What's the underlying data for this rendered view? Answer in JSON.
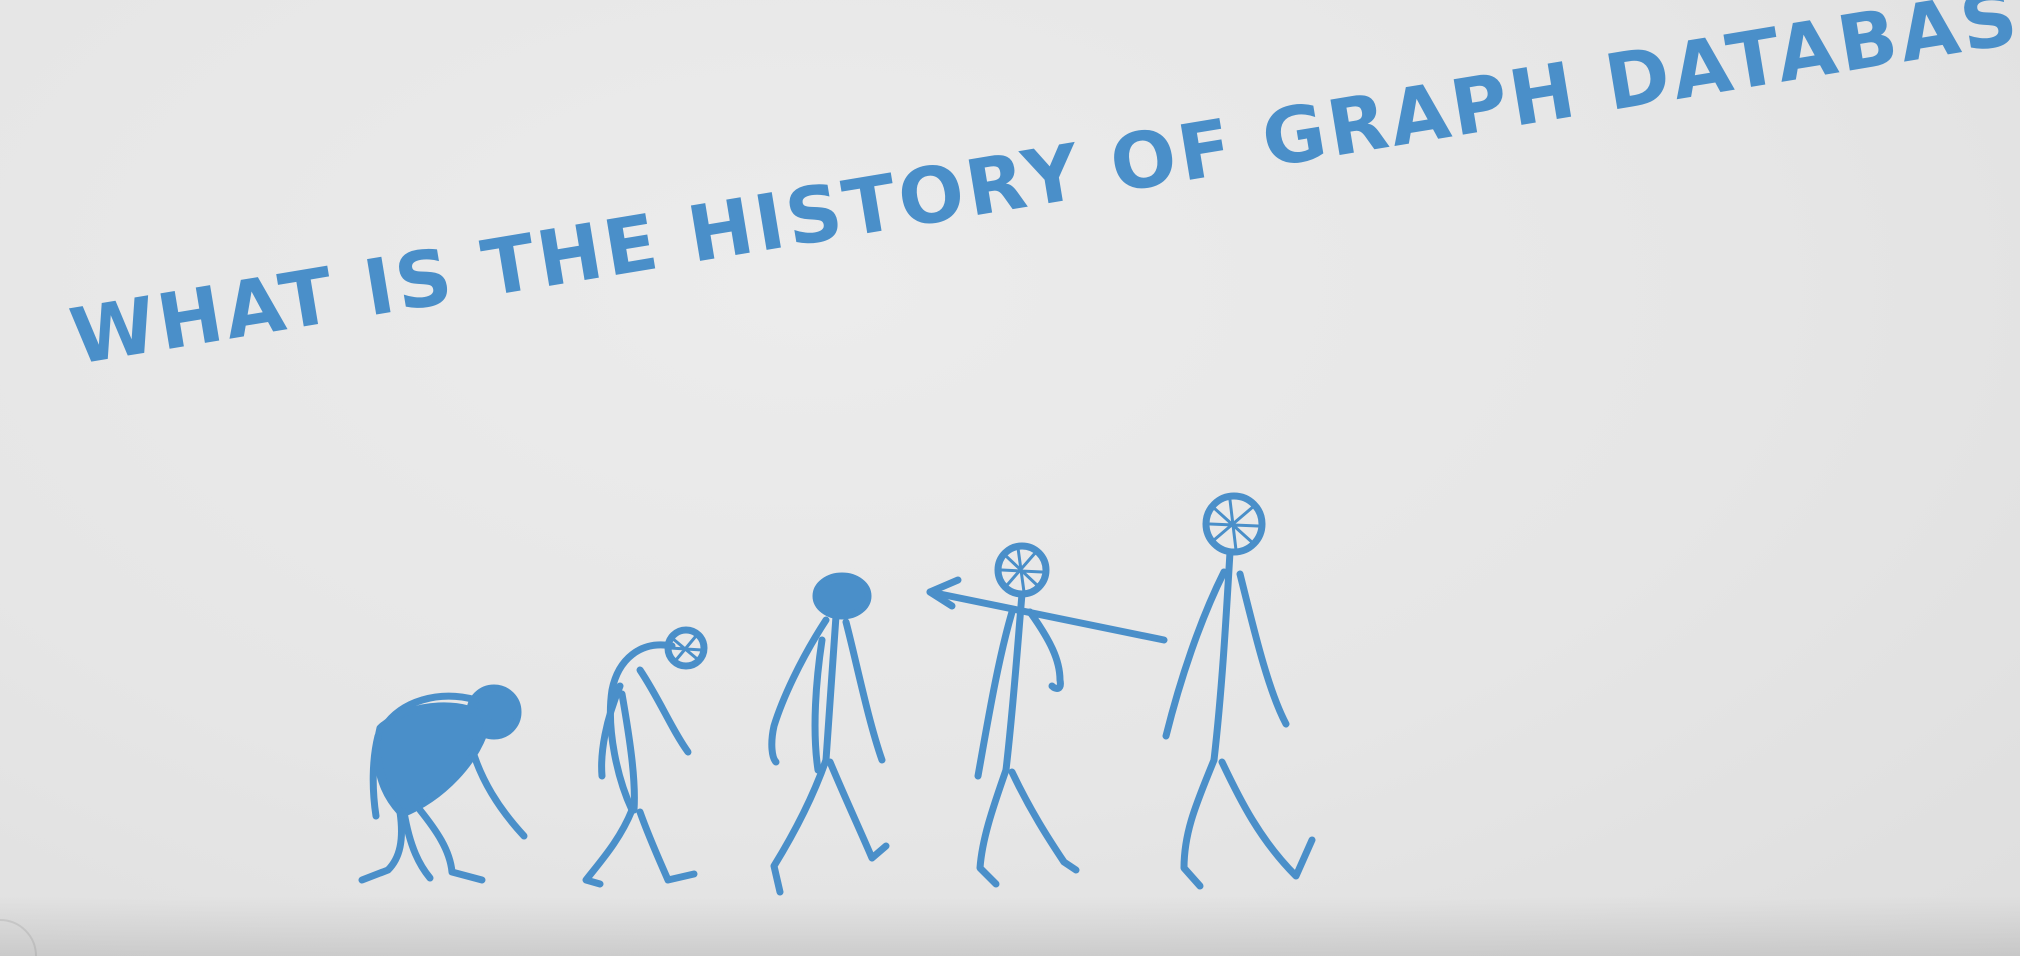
{
  "headline": "WHAT IS THE HISTORY OF GRAPH DATABASES ..?",
  "colors": {
    "ink": "#4a8fc9",
    "paper": "#e9e9e9"
  },
  "illustration": {
    "subject": "evolution-of-man",
    "figures": [
      "ape",
      "hunched-hominid",
      "early-human",
      "spear-carrier",
      "modern-human"
    ]
  }
}
